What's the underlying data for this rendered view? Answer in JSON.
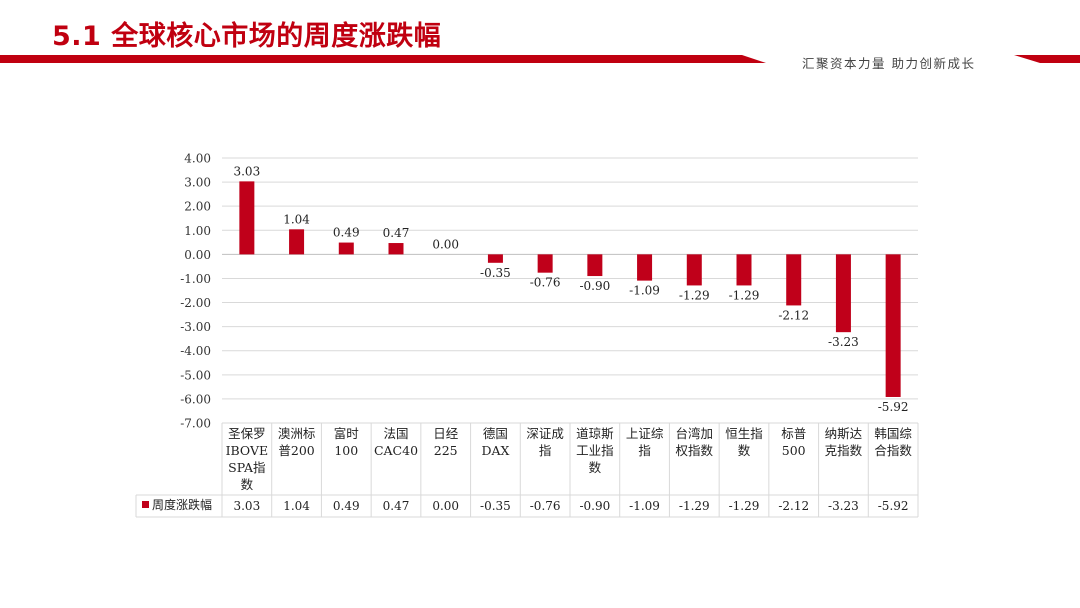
{
  "header": {
    "title": "5.1 全球核心市场的周度涨跌幅",
    "slogan": "汇聚资本力量 助力创新成长",
    "accent_color": "#c00010"
  },
  "chart_data": {
    "type": "bar",
    "categories": [
      [
        "圣保罗",
        "IBOVE",
        "SPA指",
        "数"
      ],
      [
        "澳洲标",
        "普200"
      ],
      [
        "富时",
        "100"
      ],
      [
        "法国",
        "CAC40"
      ],
      [
        "日经",
        "225"
      ],
      [
        "德国",
        "DAX"
      ],
      [
        "深证成",
        "指"
      ],
      [
        "道琼斯",
        "工业指",
        "数"
      ],
      [
        "上证综",
        "指"
      ],
      [
        "台湾加",
        "权指数"
      ],
      [
        "恒生指",
        "数"
      ],
      [
        "标普",
        "500"
      ],
      [
        "纳斯达",
        "克指数"
      ],
      [
        "韩国综",
        "合指数"
      ]
    ],
    "series": [
      {
        "name": "周度涨跌幅",
        "values": [
          3.03,
          1.04,
          0.49,
          0.47,
          0.0,
          -0.35,
          -0.76,
          -0.9,
          -1.09,
          -1.29,
          -1.29,
          -2.12,
          -3.23,
          -5.92
        ],
        "labels": [
          "3.03",
          "1.04",
          "0.49",
          "0.47",
          "0.00",
          "-0.35",
          "-0.76",
          "-0.90",
          "-1.09",
          "-1.29",
          "-1.29",
          "-2.12",
          "-3.23",
          "-5.92"
        ],
        "color": "#c0001a"
      }
    ],
    "ylim": [
      -7,
      4
    ],
    "yticks": [
      "4.00",
      "3.00",
      "2.00",
      "1.00",
      "0.00",
      "-1.00",
      "-2.00",
      "-3.00",
      "-4.00",
      "-5.00",
      "-6.00",
      "-7.00"
    ],
    "grid": true,
    "legend": "data-table-left"
  }
}
